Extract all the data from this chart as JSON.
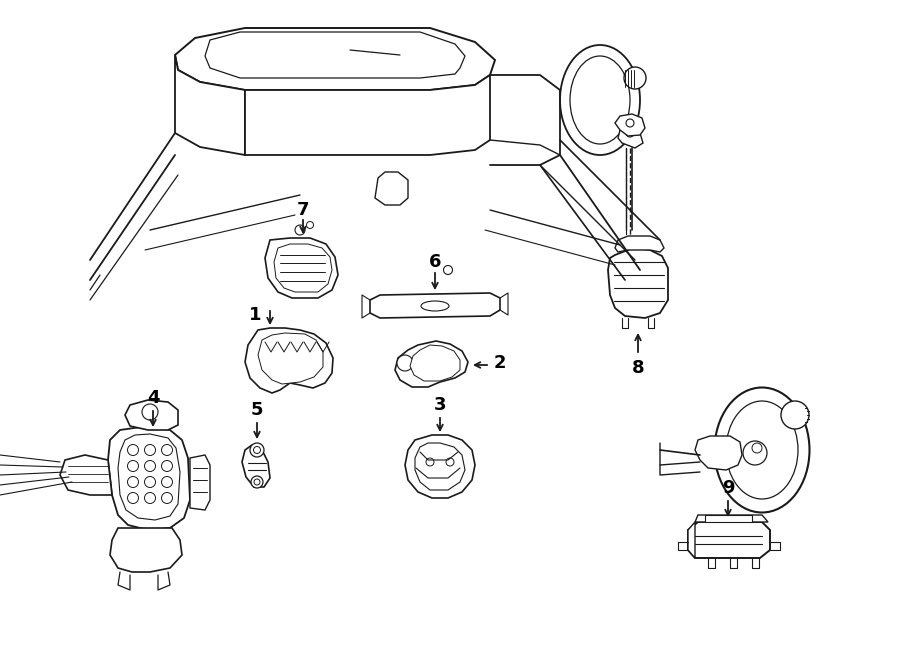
{
  "bg_color": "#ffffff",
  "line_color": "#1a1a1a",
  "lw_main": 1.3,
  "lw_detail": 0.8,
  "fig_width": 9.0,
  "fig_height": 6.61,
  "dpi": 100
}
